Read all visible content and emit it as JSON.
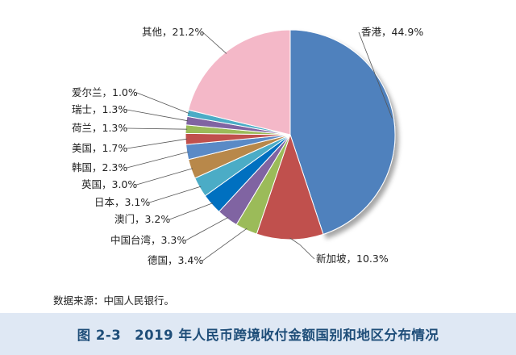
{
  "chart_data": {
    "type": "pie",
    "categories": [
      "香港",
      "新加坡",
      "德国",
      "中国台湾",
      "澳门",
      "日本",
      "英国",
      "韩国",
      "美国",
      "荷兰",
      "瑞士",
      "爱尔兰",
      "其他"
    ],
    "values": [
      44.9,
      10.3,
      3.4,
      3.3,
      3.2,
      3.1,
      3.0,
      2.3,
      1.7,
      1.3,
      1.3,
      1.0,
      21.2
    ],
    "data_labels": [
      "香港，44.9%",
      "新加坡，10.3%",
      "德国，3.4%",
      "中国台湾，3.3%",
      "澳门，3.2%",
      "日本，3.1%",
      "英国，3.0%",
      "韩国，2.3%",
      "美国，1.7%",
      "荷兰，1.3%",
      "瑞士，1.3%",
      "爱尔兰，1.0%",
      "其他，21.2%"
    ],
    "colors": [
      "#4f81bd",
      "#c0504d",
      "#9bbb59",
      "#8064a2",
      "#0070c0",
      "#4bacc6",
      "#b8884a",
      "#5a8ac6",
      "#c0504d",
      "#9bbb59",
      "#8064a2",
      "#4bacc6",
      "#f4b8c8"
    ],
    "start": "12 o'clock",
    "direction": "clockwise",
    "legend": "none"
  },
  "source_note": "数据来源：中国人民银行。",
  "caption": "图 2-3　2019 年人民币跨境收付金额国别和地区分布情况",
  "caption_bar_color": "#dfe8f4",
  "caption_text_color": "#1f4e79"
}
